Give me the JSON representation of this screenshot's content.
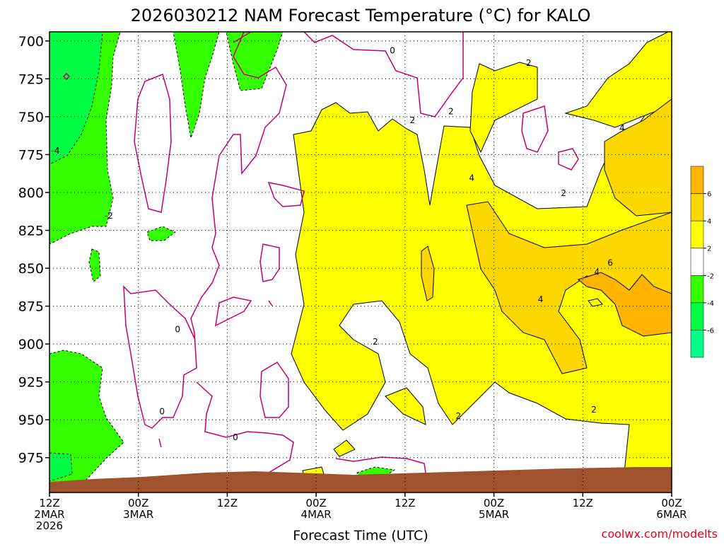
{
  "chart_data": {
    "type": "heatmap",
    "title": "2026030212 NAM Forecast Temperature (°C) for KALO",
    "xlabel": "Forecast Time (UTC)",
    "ylabel": "",
    "credit": "coolwx.com/modelts",
    "x_ticks": [
      {
        "hour": 0,
        "lines": [
          "12Z",
          "2MAR",
          "2026"
        ]
      },
      {
        "hour": 12,
        "lines": [
          "00Z",
          "3MAR"
        ]
      },
      {
        "hour": 24,
        "lines": [
          "12Z"
        ]
      },
      {
        "hour": 36,
        "lines": [
          "00Z",
          "4MAR"
        ]
      },
      {
        "hour": 48,
        "lines": [
          "12Z"
        ]
      },
      {
        "hour": 60,
        "lines": [
          "00Z",
          "5MAR"
        ]
      },
      {
        "hour": 72,
        "lines": [
          "12Z"
        ]
      },
      {
        "hour": 84,
        "lines": [
          "00Z",
          "6MAR"
        ]
      }
    ],
    "xlim": [
      0,
      84
    ],
    "y_ticks": [
      700,
      725,
      750,
      775,
      800,
      825,
      850,
      875,
      900,
      925,
      950,
      975
    ],
    "ylim": [
      694,
      998
    ],
    "grid": true,
    "colorbar": {
      "labels": [
        "6",
        "4",
        "2",
        "-2",
        "-4",
        "-6"
      ],
      "bands": [
        {
          "range": [
            6,
            8
          ],
          "color": "#ffb400"
        },
        {
          "range": [
            4,
            6
          ],
          "color": "#ffd700"
        },
        {
          "range": [
            2,
            4
          ],
          "color": "#ffff00"
        },
        {
          "range": [
            -2,
            2
          ],
          "color": "#ffffff"
        },
        {
          "range": [
            -4,
            -2
          ],
          "color": "#33ff00"
        },
        {
          "range": [
            -6,
            -4
          ],
          "color": "#00ff44"
        },
        {
          "range": [
            -8,
            -6
          ],
          "color": "#00ff88"
        }
      ]
    },
    "contour_labels": [
      {
        "text": "0",
        "hour": 46.3,
        "p": 706
      },
      {
        "text": "2",
        "hour": 64.7,
        "p": 714
      },
      {
        "text": "2",
        "hour": 49.0,
        "p": 752
      },
      {
        "text": "2",
        "hour": 54.2,
        "p": 746
      },
      {
        "text": "4",
        "hour": 77.3,
        "p": 757
      },
      {
        "text": "-4",
        "hour": 0.8,
        "p": 772
      },
      {
        "text": "4",
        "hour": 57.0,
        "p": 790
      },
      {
        "text": "2",
        "hour": 69.4,
        "p": 800
      },
      {
        "text": "-2",
        "hour": 8.0,
        "p": 815
      },
      {
        "text": "6",
        "hour": 75.7,
        "p": 846
      },
      {
        "text": "4",
        "hour": 73.9,
        "p": 852
      },
      {
        "text": "4",
        "hour": 66.3,
        "p": 870
      },
      {
        "text": "0",
        "hour": 17.3,
        "p": 890
      },
      {
        "text": "2",
        "hour": 44.0,
        "p": 898
      },
      {
        "text": "0",
        "hour": 15.2,
        "p": 944
      },
      {
        "text": "2",
        "hour": 55.2,
        "p": 947
      },
      {
        "text": "2",
        "hour": 73.5,
        "p": 943
      },
      {
        "text": "0",
        "hour": 25.1,
        "p": 961
      }
    ]
  }
}
